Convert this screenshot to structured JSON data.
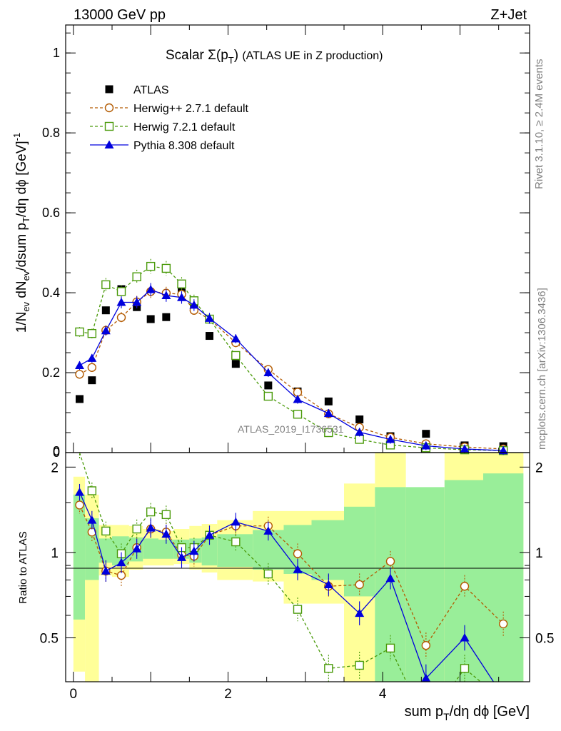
{
  "header": {
    "left": "13000 GeV pp",
    "right": "Z+Jet"
  },
  "side_labels": {
    "rivet": "Rivet 3.1.10, ≥ 2.4M events",
    "mcplots": "mcplots.cern.ch [arXiv:1306.3436]"
  },
  "chart_data": [
    {
      "type": "scatter",
      "title": "Scalar Σ(p_T) (ATLAS UE in Z production)",
      "watermark": "ATLAS_2019_I1736531",
      "xlabel": "",
      "ylabel": "1/N_ev dN_ev/dsum p_T/dη dϕ [GeV]^-1",
      "xlim": [
        -0.1,
        5.9
      ],
      "ylim": [
        0,
        1.07
      ],
      "yticks": [
        "0",
        "0.2",
        "0.4",
        "0.6",
        "0.8",
        "1"
      ],
      "legend_position": "top-left",
      "x": [
        0.08,
        0.24,
        0.42,
        0.62,
        0.82,
        1.0,
        1.2,
        1.4,
        1.56,
        1.76,
        2.1,
        2.52,
        2.9,
        3.3,
        3.7,
        4.1,
        4.56,
        5.06,
        5.56
      ],
      "series": [
        {
          "name": "ATLAS",
          "style": "data",
          "color": "#000000",
          "values": [
            0.134,
            0.181,
            0.356,
            0.409,
            0.364,
            0.334,
            0.339,
            0.405,
            0.366,
            0.292,
            0.222,
            0.168,
            0.153,
            0.128,
            0.083,
            0.041,
            0.047,
            0.018,
            0.016
          ]
        },
        {
          "name": "Herwig++ 2.7.1 default",
          "style": "circle",
          "color": "#b35a00",
          "values": [
            0.196,
            0.213,
            0.306,
            0.338,
            0.377,
            0.403,
            0.399,
            0.396,
            0.356,
            0.334,
            0.275,
            0.208,
            0.151,
            0.097,
            0.063,
            0.038,
            0.022,
            0.014,
            0.009
          ]
        },
        {
          "name": "Herwig 7.2.1 default",
          "style": "square",
          "color": "#4a9a0a",
          "values": [
            0.302,
            0.298,
            0.42,
            0.403,
            0.44,
            0.466,
            0.461,
            0.422,
            0.38,
            0.334,
            0.243,
            0.141,
            0.096,
            0.05,
            0.033,
            0.019,
            0.012,
            0.007,
            0.005
          ]
        },
        {
          "name": "Pythia 8.308 default",
          "style": "triangle",
          "color": "#0000dd",
          "values": [
            0.218,
            0.236,
            0.305,
            0.376,
            0.376,
            0.408,
            0.393,
            0.388,
            0.369,
            0.336,
            0.285,
            0.2,
            0.133,
            0.098,
            0.051,
            0.033,
            0.017,
            0.009,
            0.005
          ]
        }
      ]
    },
    {
      "type": "line",
      "title": "",
      "xlabel": "sum p_T/dη dϕ [GeV]",
      "ylabel": "Ratio to ATLAS",
      "xlim": [
        -0.1,
        5.9
      ],
      "ylim": [
        0.35,
        2.25
      ],
      "xticks": [
        "0",
        "2",
        "4"
      ],
      "yticks": [
        "0.5",
        "1",
        "2"
      ],
      "x": [
        0.08,
        0.24,
        0.42,
        0.62,
        0.82,
        1.0,
        1.2,
        1.4,
        1.56,
        1.76,
        2.1,
        2.52,
        2.9,
        3.3,
        3.7,
        4.1,
        4.56,
        5.06,
        5.56
      ],
      "bands": {
        "edges": [
          0.0,
          0.15,
          0.33,
          0.5,
          0.72,
          0.9,
          1.1,
          1.3,
          1.5,
          1.66,
          1.86,
          2.32,
          2.72,
          3.08,
          3.5,
          3.9,
          4.3,
          4.8,
          5.3,
          5.82
        ],
        "green_low": [
          0.58,
          0.8,
          0.92,
          0.9,
          0.93,
          0.95,
          0.95,
          0.95,
          0.92,
          0.9,
          0.89,
          0.87,
          0.84,
          0.8,
          0.7,
          0.35,
          0.35,
          0.35,
          0.35
        ],
        "green_high": [
          1.6,
          1.32,
          1.12,
          1.14,
          1.13,
          1.12,
          1.11,
          1.11,
          1.12,
          1.13,
          1.16,
          1.2,
          1.25,
          1.3,
          1.45,
          1.7,
          1.7,
          1.8,
          1.9
        ],
        "yellow_low": [
          0.38,
          0.35,
          0.83,
          0.82,
          0.87,
          0.9,
          0.9,
          0.91,
          0.87,
          0.85,
          0.8,
          0.79,
          0.66,
          0.66,
          0.35,
          0.35,
          0.35,
          0.35,
          0.35
        ],
        "yellow_high": [
          1.85,
          1.6,
          1.25,
          1.25,
          1.24,
          1.21,
          1.19,
          1.21,
          1.24,
          1.26,
          1.3,
          1.4,
          1.4,
          1.4,
          1.75,
          2.25,
          1.6,
          2.25,
          2.25
        ],
        "green_color": "#99ee99",
        "yellow_color": "#ffff99"
      },
      "series": [
        {
          "name": "Herwig++ 2.7.1 default",
          "style": "circle",
          "color": "#b35a00",
          "values": [
            1.47,
            1.18,
            0.86,
            0.83,
            1.04,
            1.21,
            1.18,
            0.98,
            0.97,
            1.15,
            1.24,
            1.24,
            0.99,
            0.76,
            0.77,
            0.93,
            0.47,
            0.76,
            0.56
          ]
        },
        {
          "name": "Herwig 7.2.1 default",
          "style": "square",
          "color": "#4a9a0a",
          "values": [
            2.25,
            1.65,
            1.19,
            0.99,
            1.21,
            1.39,
            1.36,
            1.04,
            1.04,
            1.15,
            1.09,
            0.84,
            0.63,
            0.39,
            0.4,
            0.46,
            0.25,
            0.39,
            0.3
          ]
        },
        {
          "name": "Pythia 8.308 default",
          "style": "triangle",
          "color": "#0000dd",
          "values": [
            1.63,
            1.3,
            0.86,
            0.92,
            1.03,
            1.22,
            1.16,
            0.96,
            1.01,
            1.15,
            1.28,
            1.19,
            0.87,
            0.77,
            0.61,
            0.81,
            0.36,
            0.5,
            0.31
          ]
        }
      ]
    }
  ]
}
